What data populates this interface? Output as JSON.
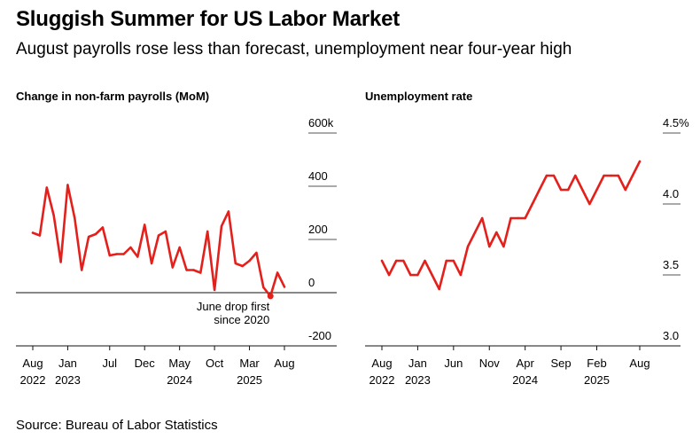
{
  "header": {
    "title": "Sluggish Summer for US Labor Market",
    "subtitle": "August payrolls rose less than forecast, unemployment near four-year high"
  },
  "footer": {
    "source": "Source: Bureau of Labor Statistics"
  },
  "colors": {
    "line": "#e3201b",
    "grid": "#555555",
    "axis": "#111111"
  },
  "chart_data": [
    {
      "type": "line",
      "title": "Change in non-farm payrolls (MoM)",
      "ylim": [
        -200,
        600
      ],
      "yticks": [
        -200,
        0,
        200,
        400,
        600
      ],
      "ytick_labels": [
        "-200",
        "0",
        "200",
        "400",
        "600k"
      ],
      "xticks": [
        {
          "label": "Aug",
          "year": "2022",
          "x": "2022-08"
        },
        {
          "label": "Jan",
          "year": "2023",
          "x": "2023-01"
        },
        {
          "label": "Jul",
          "year": "",
          "x": "2023-07"
        },
        {
          "label": "Dec",
          "year": "",
          "x": "2023-12"
        },
        {
          "label": "May",
          "year": "2024",
          "x": "2024-05"
        },
        {
          "label": "Oct",
          "year": "",
          "x": "2024-10"
        },
        {
          "label": "Mar",
          "year": "2025",
          "x": "2025-03"
        },
        {
          "label": "Aug",
          "year": "",
          "x": "2025-08"
        }
      ],
      "annotation": {
        "lines": [
          "June drop first",
          "since 2020"
        ],
        "x": "2025-06",
        "y": -13
      },
      "series": [
        {
          "x": [
            "2022-08",
            "2022-09",
            "2022-10",
            "2022-11",
            "2022-12",
            "2023-01",
            "2023-02",
            "2023-03",
            "2023-04",
            "2023-05",
            "2023-06",
            "2023-07",
            "2023-08",
            "2023-09",
            "2023-10",
            "2023-11",
            "2023-12",
            "2024-01",
            "2024-02",
            "2024-03",
            "2024-04",
            "2024-05",
            "2024-06",
            "2024-07",
            "2024-08",
            "2024-09",
            "2024-10",
            "2024-11",
            "2024-12",
            "2025-01",
            "2025-02",
            "2025-03",
            "2025-04",
            "2025-05",
            "2025-06",
            "2025-07",
            "2025-08"
          ],
          "values": [
            225,
            215,
            395,
            290,
            115,
            405,
            280,
            85,
            210,
            220,
            245,
            140,
            145,
            145,
            170,
            135,
            255,
            110,
            215,
            230,
            95,
            170,
            85,
            85,
            75,
            230,
            10,
            250,
            305,
            110,
            100,
            120,
            150,
            20,
            -13,
            75,
            22
          ]
        }
      ]
    },
    {
      "type": "line",
      "title": "Unemployment rate",
      "ylim": [
        3.0,
        4.5
      ],
      "yticks": [
        3.0,
        3.5,
        4.0,
        4.5
      ],
      "ytick_labels": [
        "3.0",
        "3.5",
        "4.0",
        "4.5%"
      ],
      "xticks": [
        {
          "label": "Aug",
          "year": "2022",
          "x": "2022-08"
        },
        {
          "label": "Jan",
          "year": "2023",
          "x": "2023-01"
        },
        {
          "label": "Jun",
          "year": "",
          "x": "2023-06"
        },
        {
          "label": "Nov",
          "year": "",
          "x": "2023-11"
        },
        {
          "label": "Apr",
          "year": "2024",
          "x": "2024-04"
        },
        {
          "label": "Sep",
          "year": "",
          "x": "2024-09"
        },
        {
          "label": "Feb",
          "year": "2025",
          "x": "2025-02"
        },
        {
          "label": "Aug",
          "year": "",
          "x": "2025-08"
        }
      ],
      "series": [
        {
          "x": [
            "2022-08",
            "2022-09",
            "2022-10",
            "2022-11",
            "2022-12",
            "2023-01",
            "2023-02",
            "2023-03",
            "2023-04",
            "2023-05",
            "2023-06",
            "2023-07",
            "2023-08",
            "2023-09",
            "2023-10",
            "2023-11",
            "2023-12",
            "2024-01",
            "2024-02",
            "2024-03",
            "2024-04",
            "2024-05",
            "2024-06",
            "2024-07",
            "2024-08",
            "2024-09",
            "2024-10",
            "2024-11",
            "2024-12",
            "2025-01",
            "2025-02",
            "2025-03",
            "2025-04",
            "2025-05",
            "2025-06",
            "2025-07",
            "2025-08"
          ],
          "values": [
            3.6,
            3.5,
            3.6,
            3.6,
            3.5,
            3.5,
            3.6,
            3.5,
            3.4,
            3.6,
            3.6,
            3.5,
            3.7,
            3.8,
            3.9,
            3.7,
            3.8,
            3.7,
            3.9,
            3.9,
            3.9,
            4.0,
            4.1,
            4.2,
            4.2,
            4.1,
            4.1,
            4.2,
            4.1,
            4.0,
            4.1,
            4.2,
            4.2,
            4.2,
            4.1,
            4.2,
            4.3
          ]
        }
      ]
    }
  ]
}
